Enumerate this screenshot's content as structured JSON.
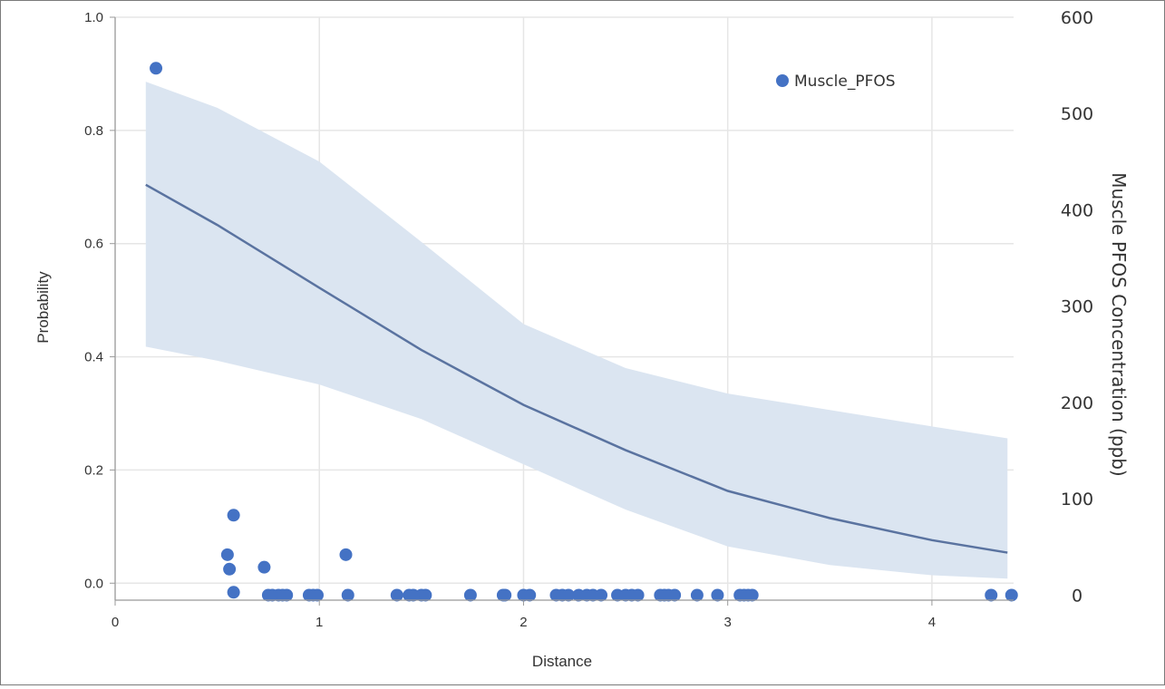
{
  "chart_data": {
    "type": "scatter",
    "title": "",
    "xlabel": "Distance",
    "ylabel": "Probability",
    "y2label": "Muscle PFOS Concentration (ppb)",
    "xlim": [
      0,
      4.4
    ],
    "ylim": [
      -0.03,
      1.0
    ],
    "y2lim": [
      -5.2,
      600
    ],
    "grid": true,
    "legend_placement": "top-right",
    "x_ticks": [
      "0",
      "1",
      "2",
      "3",
      "4"
    ],
    "y_ticks": [
      "0.0",
      "0.2",
      "0.4",
      "0.6",
      "0.8",
      "1.0"
    ],
    "y2_ticks": [
      "0",
      "100",
      "200",
      "300",
      "400",
      "500",
      "600"
    ],
    "colors": {
      "points": "#4472c4",
      "line": "#5a73a0",
      "band": "#dbe5f1",
      "grid": "#e6e6e6"
    },
    "fit_line": {
      "x": [
        0.15,
        0.5,
        1.0,
        1.5,
        2.0,
        2.5,
        3.0,
        3.5,
        4.0,
        4.37
      ],
      "y": [
        0.704,
        0.633,
        0.522,
        0.412,
        0.315,
        0.235,
        0.163,
        0.115,
        0.076,
        0.054
      ]
    },
    "confidence_band": {
      "x": [
        0.15,
        0.5,
        1.0,
        1.5,
        2.0,
        2.5,
        3.0,
        3.5,
        4.0,
        4.37
      ],
      "lower": [
        0.418,
        0.393,
        0.351,
        0.29,
        0.21,
        0.13,
        0.065,
        0.032,
        0.014,
        0.008
      ],
      "upper": [
        0.886,
        0.84,
        0.745,
        0.603,
        0.458,
        0.38,
        0.335,
        0.306,
        0.277,
        0.256
      ]
    },
    "series": [
      {
        "name": "Muscle_PFOS",
        "x": [
          0.2,
          0.55,
          0.56,
          0.58,
          0.58,
          0.73,
          0.75,
          0.77,
          0.8,
          0.82,
          0.84,
          0.95,
          0.97,
          0.99,
          1.13,
          1.14,
          1.38,
          1.44,
          1.46,
          1.5,
          1.52,
          1.74,
          1.9,
          1.91,
          2.0,
          2.03,
          2.16,
          2.19,
          2.22,
          2.27,
          2.31,
          2.34,
          2.38,
          2.46,
          2.5,
          2.53,
          2.56,
          2.67,
          2.69,
          2.71,
          2.74,
          2.85,
          2.95,
          3.06,
          3.08,
          3.1,
          3.12,
          4.29,
          4.39
        ],
        "y": [
          547,
          42,
          27,
          83,
          3,
          29,
          0,
          0,
          0,
          0,
          0,
          0,
          0,
          0,
          42,
          0,
          0,
          0,
          0,
          0,
          0,
          0,
          0,
          0,
          0,
          0,
          0,
          0,
          0,
          0,
          0,
          0,
          0,
          0,
          0,
          0,
          0,
          0,
          0,
          0,
          0,
          0,
          0,
          0,
          0,
          0,
          0,
          0,
          0
        ]
      }
    ]
  }
}
